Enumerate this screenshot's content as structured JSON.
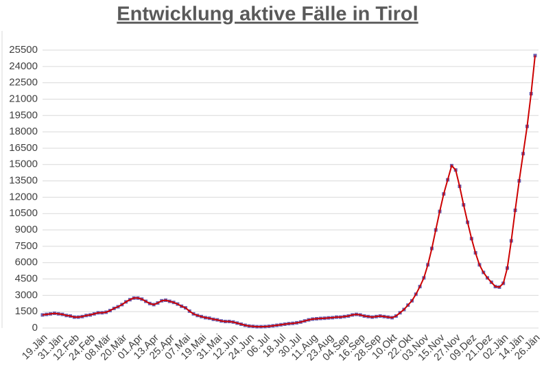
{
  "chart_data": {
    "type": "line",
    "title": "Entwicklung aktive Fälle in Tirol",
    "categories": [
      "19.Jän",
      null,
      null,
      null,
      "31.Jän",
      null,
      null,
      null,
      "12.Feb",
      null,
      null,
      null,
      "24.Feb",
      null,
      null,
      null,
      "08.Mär",
      null,
      null,
      null,
      "20.Mär",
      null,
      null,
      null,
      "01.Apr",
      null,
      null,
      null,
      "13.Apr",
      null,
      null,
      null,
      "25.Apr",
      null,
      null,
      null,
      "07.Mai",
      null,
      null,
      null,
      "19.Mai",
      null,
      null,
      null,
      "31.Mai",
      null,
      null,
      null,
      "12.Jun",
      null,
      null,
      null,
      "24.Jun",
      null,
      null,
      null,
      "06.Jul",
      null,
      null,
      null,
      "18.Jul",
      null,
      null,
      null,
      "30.Jul",
      null,
      null,
      null,
      "11.Aug",
      null,
      null,
      null,
      "23.Aug",
      null,
      null,
      null,
      "04.Sep",
      null,
      null,
      null,
      "16.Sep",
      null,
      null,
      null,
      "28.Sep",
      null,
      null,
      null,
      "10.Okt",
      null,
      null,
      null,
      "22.Okt",
      null,
      null,
      null,
      "03.Nov",
      null,
      null,
      null,
      "15.Nov",
      null,
      null,
      null,
      "27.Nov",
      null,
      null,
      null,
      "09.Dez",
      null,
      null,
      null,
      "21.Dez",
      null,
      null,
      null,
      "02.Jän",
      null,
      null,
      null,
      "14.Jän",
      null,
      null,
      null,
      "26.Jän"
    ],
    "series": [
      {
        "color": "#cc0000",
        "marker_color": "#6a5fb0",
        "values": [
          1200,
          1250,
          1300,
          1350,
          1300,
          1250,
          1150,
          1100,
          1000,
          1000,
          1050,
          1150,
          1200,
          1300,
          1400,
          1400,
          1450,
          1600,
          1800,
          1950,
          2150,
          2400,
          2600,
          2750,
          2750,
          2650,
          2450,
          2250,
          2150,
          2300,
          2500,
          2550,
          2450,
          2350,
          2200,
          2000,
          1850,
          1550,
          1300,
          1150,
          1050,
          950,
          900,
          800,
          750,
          650,
          600,
          600,
          550,
          450,
          350,
          250,
          180,
          150,
          120,
          120,
          130,
          160,
          200,
          250,
          300,
          350,
          400,
          430,
          480,
          550,
          650,
          750,
          820,
          850,
          880,
          900,
          930,
          950,
          1000,
          1000,
          1050,
          1100,
          1200,
          1250,
          1200,
          1100,
          1050,
          1000,
          1050,
          1100,
          1050,
          1000,
          950,
          1100,
          1400,
          1700,
          2100,
          2500,
          3100,
          3800,
          4600,
          5800,
          7300,
          9000,
          10700,
          12300,
          13600,
          14900,
          14500,
          13000,
          11300,
          9700,
          8200,
          6900,
          5800,
          5100,
          4600,
          4200,
          3800,
          3750,
          4100,
          5500,
          8000,
          10800,
          13500,
          16000,
          18500,
          21500,
          25000
        ]
      }
    ],
    "ylim": [
      0,
      25500
    ],
    "yticks": [
      0,
      1500,
      3000,
      4500,
      6000,
      7500,
      9000,
      10500,
      12000,
      13500,
      15000,
      16500,
      18000,
      19500,
      21000,
      22500,
      24000,
      25500
    ],
    "grid": true
  }
}
